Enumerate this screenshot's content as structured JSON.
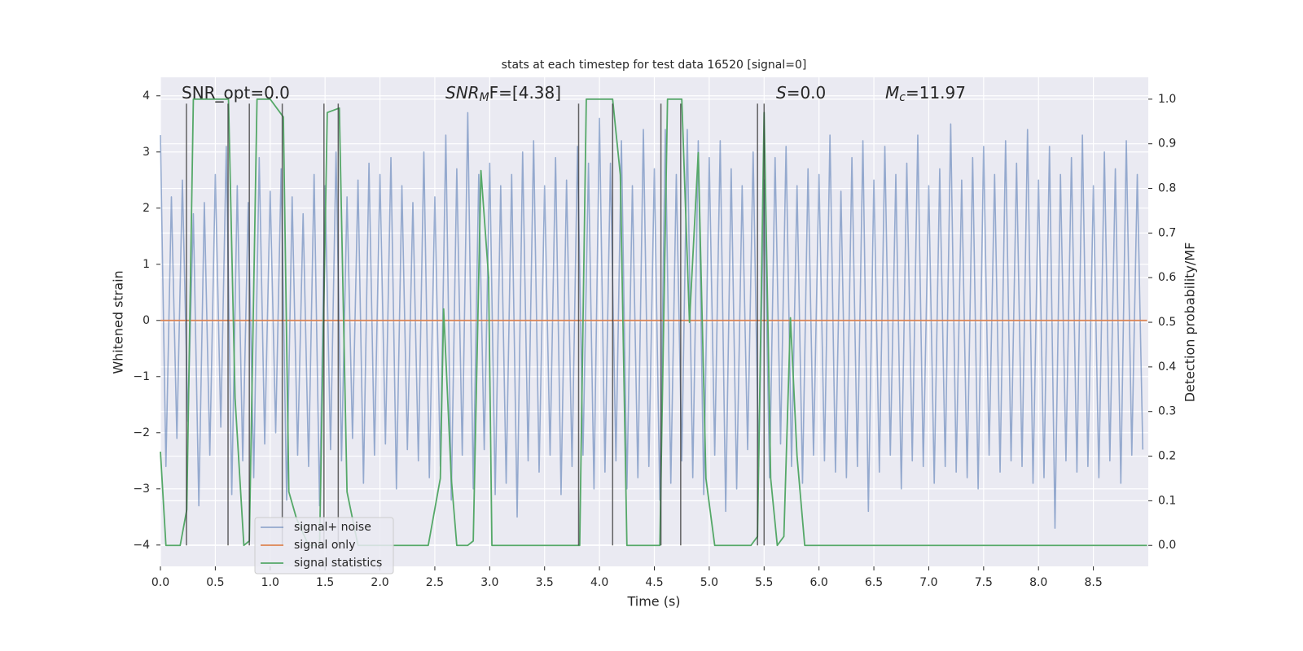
{
  "chart_data": {
    "type": "line",
    "title": "stats at each timestep for test data 16520 [signal=0]",
    "x_label": "Time (s)",
    "y_label": "Whitened strain",
    "y2_label": "Detection probability/MF",
    "xlim": [
      0,
      9
    ],
    "ylim": [
      -4.38,
      4.33
    ],
    "y2lim": [
      -0.047,
      1.049
    ],
    "xticks": [
      {
        "value": 0,
        "label": "0.0"
      },
      0.5,
      {
        "value": 1,
        "label": "1.0"
      },
      1.5,
      {
        "value": 2,
        "label": "2.0"
      },
      2.5,
      {
        "value": 3,
        "label": "3.0"
      },
      3.5,
      {
        "value": 4,
        "label": "4.0"
      },
      4.5,
      {
        "value": 5,
        "label": "5.0"
      },
      5.5,
      {
        "value": 6,
        "label": "6.0"
      },
      6.5,
      {
        "value": 7,
        "label": "7.0"
      },
      7.5,
      {
        "value": 8,
        "label": "8.0"
      },
      8.5
    ],
    "yticks": [
      {
        "value": -4,
        "label": "−4"
      },
      {
        "value": -3,
        "label": "−3"
      },
      {
        "value": -2,
        "label": "−2"
      },
      {
        "value": -1,
        "label": "−1"
      },
      0,
      1,
      2,
      3,
      4
    ],
    "y2ticks": [
      {
        "value": 0,
        "label": "0.0"
      },
      0.1,
      0.2,
      0.3,
      0.4,
      0.5,
      0.6,
      0.7,
      0.8,
      0.9,
      {
        "value": 1,
        "label": "1.0"
      }
    ],
    "grid": true,
    "legend": "best",
    "annotations": [
      {
        "text": "SNR_opt=0.0"
      },
      {
        "text": "SNR",
        "sub": "M",
        "suffix": "F=[4.38]"
      },
      {
        "text": "S",
        "suffix": "=0.0"
      },
      {
        "text": "M",
        "sub": "c",
        "suffix": "=11.97"
      }
    ],
    "series": [
      {
        "name": "signal+ noise",
        "color": "#4c72b0",
        "axis": "y",
        "x": [
          0,
          0.05,
          0.1,
          0.15,
          0.2,
          0.25,
          0.3,
          0.35,
          0.4,
          0.45,
          0.5,
          0.55,
          0.6,
          0.65,
          0.7,
          0.75,
          0.8,
          0.85,
          0.9,
          0.95,
          1,
          1.05,
          1.1,
          1.15,
          1.2,
          1.25,
          1.3,
          1.35,
          1.4,
          1.45,
          1.5,
          1.55,
          1.6,
          1.65,
          1.7,
          1.75,
          1.8,
          1.85,
          1.9,
          1.95,
          2,
          2.05,
          2.1,
          2.15,
          2.2,
          2.25,
          2.3,
          2.35,
          2.4,
          2.45,
          2.5,
          2.55,
          2.6,
          2.65,
          2.7,
          2.75,
          2.8,
          2.85,
          2.9,
          2.95,
          3,
          3.05,
          3.1,
          3.15,
          3.2,
          3.25,
          3.3,
          3.35,
          3.4,
          3.45,
          3.5,
          3.55,
          3.6,
          3.65,
          3.7,
          3.75,
          3.8,
          3.85,
          3.9,
          3.95,
          4,
          4.05,
          4.1,
          4.15,
          4.2,
          4.25,
          4.3,
          4.35,
          4.4,
          4.45,
          4.5,
          4.55,
          4.6,
          4.65,
          4.7,
          4.75,
          4.8,
          4.85,
          4.9,
          4.95,
          5,
          5.05,
          5.1,
          5.15,
          5.2,
          5.25,
          5.3,
          5.35,
          5.4,
          5.45,
          5.5,
          5.55,
          5.6,
          5.65,
          5.7,
          5.75,
          5.8,
          5.85,
          5.9,
          5.95,
          6,
          6.05,
          6.1,
          6.15,
          6.2,
          6.25,
          6.3,
          6.35,
          6.4,
          6.45,
          6.5,
          6.55,
          6.6,
          6.65,
          6.7,
          6.75,
          6.8,
          6.85,
          6.9,
          6.95,
          7,
          7.05,
          7.1,
          7.15,
          7.2,
          7.25,
          7.3,
          7.35,
          7.4,
          7.45,
          7.5,
          7.55,
          7.6,
          7.65,
          7.7,
          7.75,
          7.8,
          7.85,
          7.9,
          7.95,
          8,
          8.05,
          8.1,
          8.15,
          8.2,
          8.25,
          8.3,
          8.35,
          8.4,
          8.45,
          8.5,
          8.55,
          8.6,
          8.65,
          8.7,
          8.75,
          8.8,
          8.85,
          8.9,
          8.95
        ],
        "values": [
          3.3,
          -2.6,
          2.2,
          -2.1,
          2.5,
          -1.8,
          1.9,
          -3.3,
          2.1,
          -2.4,
          2.6,
          -1.9,
          3.1,
          -3.1,
          2.4,
          -2.5,
          2.1,
          -2.8,
          2.9,
          -2.2,
          2.3,
          -2.0,
          2.7,
          -3.2,
          2.2,
          -2.4,
          1.9,
          -2.6,
          2.6,
          -3.3,
          2.4,
          -2.3,
          3.0,
          -2.5,
          2.2,
          -2.1,
          2.5,
          -2.9,
          2.8,
          -2.4,
          2.6,
          -2.2,
          2.9,
          -3.0,
          2.4,
          -2.3,
          2.1,
          -2.5,
          3.0,
          -2.8,
          2.2,
          -2.6,
          3.3,
          -3.2,
          2.7,
          -2.4,
          3.7,
          -3.0,
          2.6,
          -2.3,
          2.8,
          -3.1,
          2.4,
          -2.9,
          2.6,
          -3.5,
          3.0,
          -2.5,
          3.2,
          -2.7,
          2.4,
          -2.4,
          2.9,
          -3.1,
          2.5,
          -2.6,
          3.1,
          -2.4,
          2.8,
          -3.0,
          3.6,
          -2.7,
          2.8,
          -2.5,
          3.2,
          -3.0,
          2.4,
          -2.8,
          3.4,
          -2.6,
          2.7,
          -3.2,
          3.4,
          -2.9,
          2.6,
          -2.5,
          3.4,
          -2.8,
          3.2,
          -3.1,
          2.9,
          -2.4,
          3.2,
          -3.4,
          2.7,
          -3.0,
          2.4,
          -2.3,
          3.0,
          -2.6,
          2.5,
          -2.8,
          2.9,
          -2.2,
          3.1,
          -2.6,
          2.4,
          -2.9,
          2.7,
          -2.4,
          2.6,
          -2.5,
          3.3,
          -2.7,
          2.3,
          -2.8,
          2.9,
          -2.6,
          3.2,
          -3.4,
          2.5,
          -2.7,
          3.1,
          -2.4,
          2.6,
          -3.0,
          2.8,
          -2.5,
          3.3,
          -2.6,
          2.4,
          -2.9,
          2.7,
          -2.6,
          3.5,
          -2.7,
          2.5,
          -2.8,
          2.9,
          -3.0,
          3.1,
          -2.4,
          2.6,
          -2.7,
          3.2,
          -2.5,
          2.8,
          -2.6,
          3.4,
          -2.9,
          2.5,
          -2.8,
          3.1,
          -3.7,
          2.6,
          -2.5,
          2.9,
          -2.7,
          3.3,
          -2.6,
          2.4,
          -2.8,
          3.0,
          -2.5,
          2.7,
          -2.9,
          3.2,
          -2.4,
          2.6,
          -2.3
        ]
      },
      {
        "name": "signal only",
        "color": "#dd8452",
        "axis": "y",
        "x": [
          0,
          8.99
        ],
        "values": [
          0,
          0
        ]
      },
      {
        "name": "signal statistics",
        "color": "#55a868",
        "axis": "y2",
        "x": [
          0,
          0.05,
          0.18,
          0.24,
          0.3,
          0.62,
          0.68,
          0.76,
          0.81,
          0.88,
          1.0,
          1.12,
          1.17,
          1.24,
          1.35,
          1.45,
          1.52,
          1.63,
          1.7,
          1.8,
          2.0,
          2.44,
          2.55,
          2.58,
          2.65,
          2.7,
          2.8,
          2.85,
          2.92,
          2.99,
          3.02,
          3.82,
          3.88,
          4.12,
          4.19,
          4.25,
          4.55,
          4.62,
          4.75,
          4.82,
          4.9,
          4.97,
          5.05,
          5.38,
          5.44,
          5.5,
          5.56,
          5.62,
          5.68,
          5.74,
          5.8,
          5.87,
          8.99
        ],
        "values": [
          0.21,
          0,
          0,
          0.08,
          1.0,
          1.0,
          0.33,
          0,
          0.01,
          1.0,
          1.0,
          0.96,
          0.12,
          0.06,
          0,
          0,
          0.97,
          0.98,
          0.12,
          0,
          0,
          0,
          0.15,
          0.53,
          0.15,
          0,
          0,
          0.01,
          0.84,
          0.6,
          0,
          0,
          1.0,
          1.0,
          0.83,
          0,
          0,
          1.0,
          1.0,
          0.5,
          0.88,
          0.15,
          0,
          0,
          0.02,
          0.97,
          0.15,
          0,
          0.02,
          0.51,
          0.2,
          0,
          0
        ]
      }
    ],
    "vlines": {
      "color": "#333333",
      "axis": "y2",
      "ymin": 0,
      "ymax": 0.99,
      "x": [
        0.237,
        0.616,
        0.81,
        1.11,
        1.49,
        1.62,
        3.81,
        4.12,
        4.56,
        4.74,
        5.44,
        5.5
      ]
    }
  }
}
